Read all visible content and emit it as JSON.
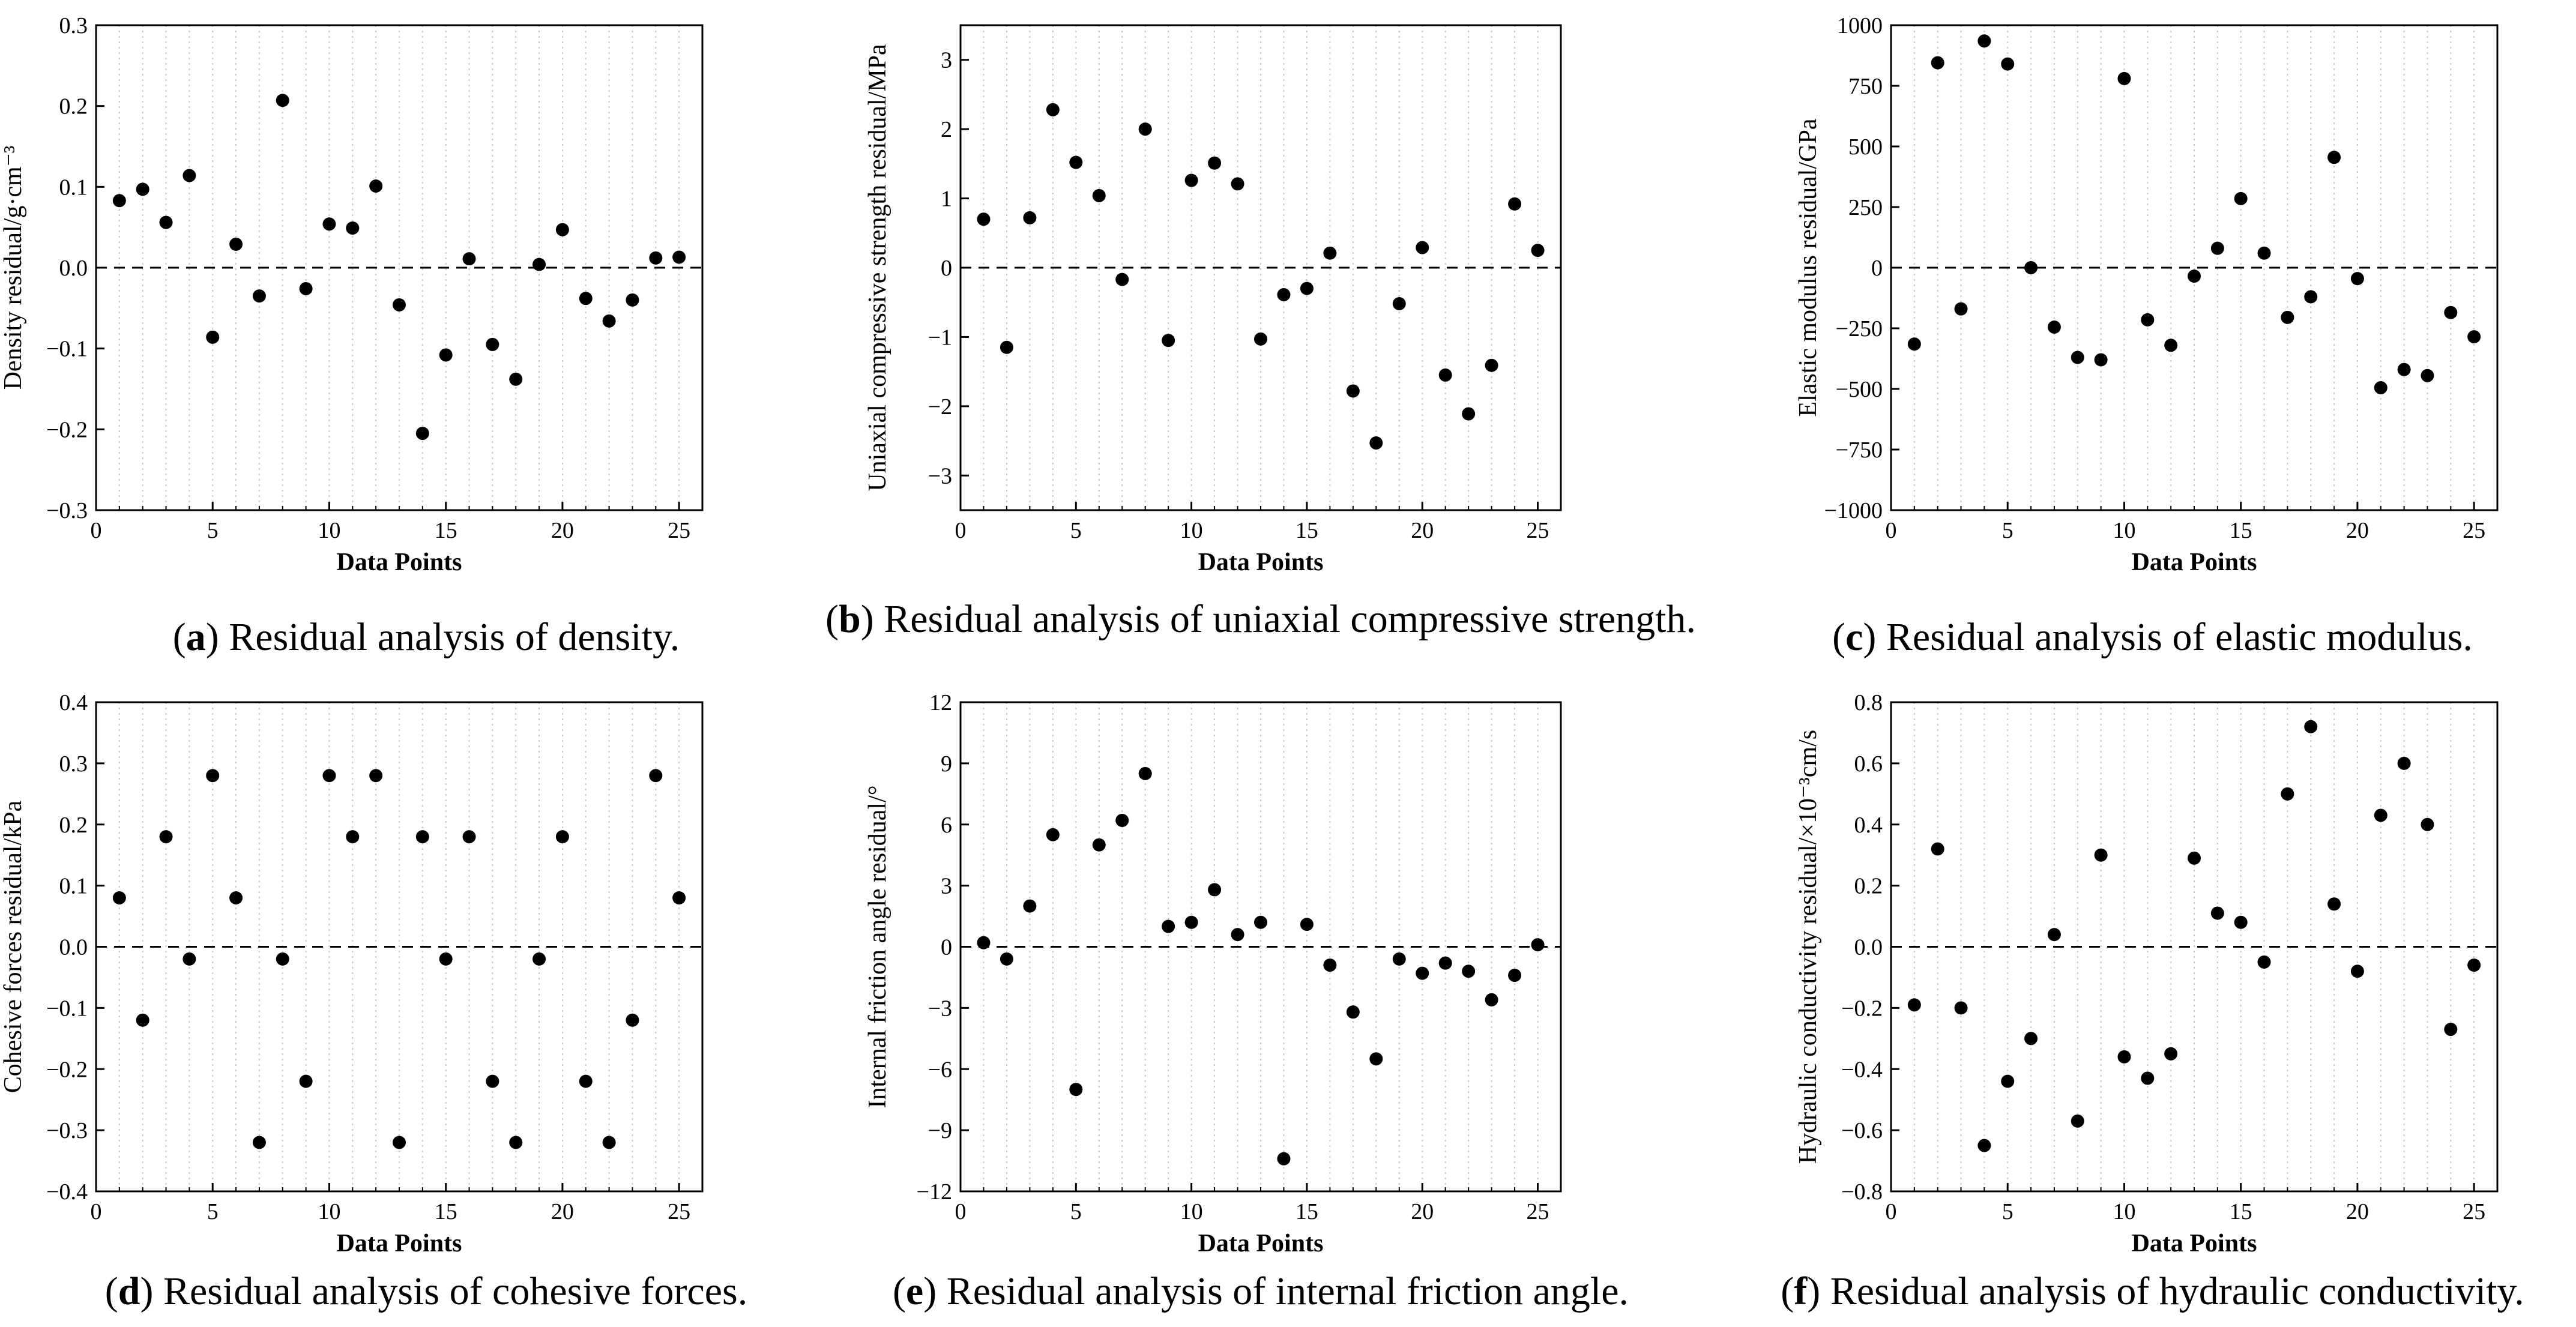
{
  "chart_data": [
    {
      "id": "a",
      "type": "scatter",
      "caption_letter": "a",
      "caption_text": "Residual analysis of density.",
      "xlabel": "Data Points",
      "ylabel": "Density residual/g·cm⁻³",
      "xlim": [
        0,
        26
      ],
      "ylim": [
        -0.3,
        0.3
      ],
      "xticks": [
        "0",
        "5",
        "10",
        "15",
        "20",
        "25"
      ],
      "yticks": [
        "−0.3",
        "−0.2",
        "−0.1",
        "0.0",
        "0.1",
        "0.2",
        "0.3"
      ],
      "x": [
        1,
        2,
        3,
        4,
        5,
        6,
        7,
        8,
        9,
        10,
        11,
        12,
        13,
        14,
        15,
        16,
        17,
        18,
        19,
        20,
        21,
        22,
        23,
        24,
        25
      ],
      "y": [
        0.083,
        0.097,
        0.056,
        0.114,
        -0.086,
        0.029,
        -0.035,
        0.207,
        -0.026,
        0.054,
        0.049,
        0.101,
        -0.046,
        -0.205,
        -0.108,
        0.011,
        -0.095,
        -0.138,
        0.004,
        0.047,
        -0.038,
        -0.066,
        -0.04,
        0.012,
        0.013
      ],
      "reference_line": 0
    },
    {
      "id": "b",
      "type": "scatter",
      "caption_letter": "b",
      "caption_text": "Residual analysis of uniaxial compressive strength.",
      "xlabel": "Data Points",
      "ylabel": "Uniaxial compressive strength residual/MPa",
      "xlim": [
        0,
        26
      ],
      "ylim": [
        -3.5,
        3.5
      ],
      "xticks": [
        "0",
        "5",
        "10",
        "15",
        "20",
        "25"
      ],
      "yticks": [
        "−3",
        "−2",
        "−1",
        "0",
        "1",
        "2",
        "3"
      ],
      "x": [
        1,
        2,
        3,
        4,
        5,
        6,
        7,
        8,
        9,
        10,
        11,
        12,
        13,
        14,
        15,
        16,
        17,
        18,
        19,
        20,
        21,
        22,
        23,
        24,
        25
      ],
      "y": [
        0.7,
        -1.15,
        0.72,
        2.28,
        1.52,
        1.04,
        -0.17,
        2.0,
        -1.05,
        1.26,
        1.51,
        1.21,
        -1.03,
        -0.39,
        -0.3,
        0.21,
        -1.78,
        -2.53,
        -0.52,
        0.29,
        -1.55,
        -2.11,
        -1.41,
        0.92,
        0.25
      ],
      "reference_line": 0
    },
    {
      "id": "c",
      "type": "scatter",
      "caption_letter": "c",
      "caption_text": "Residual analysis of elastic modulus.",
      "xlabel": "Data Points",
      "ylabel": "Elastic modulus residual/GPa",
      "xlim": [
        0,
        26
      ],
      "ylim": [
        -1000,
        1000
      ],
      "xticks": [
        "0",
        "5",
        "10",
        "15",
        "20",
        "25"
      ],
      "yticks": [
        "−1000",
        "−750",
        "−500",
        "−250",
        "0",
        "250",
        "500",
        "750",
        "1000"
      ],
      "x": [
        1,
        2,
        3,
        4,
        5,
        6,
        7,
        8,
        9,
        10,
        11,
        12,
        13,
        14,
        15,
        16,
        17,
        18,
        19,
        20,
        21,
        22,
        23,
        24,
        25
      ],
      "y": [
        -315,
        845,
        -170,
        935,
        840,
        0,
        -245,
        -370,
        -380,
        780,
        -215,
        -320,
        -35,
        80,
        285,
        60,
        -205,
        -120,
        455,
        -45,
        -495,
        -420,
        -445,
        -185,
        -285
      ],
      "reference_line": 0
    },
    {
      "id": "d",
      "type": "scatter",
      "caption_letter": "d",
      "caption_text": "Residual analysis of cohesive forces.",
      "xlabel": "Data Points",
      "ylabel": "Cohesive forces residual/kPa",
      "xlim": [
        0,
        26
      ],
      "ylim": [
        -0.4,
        0.4
      ],
      "xticks": [
        "0",
        "5",
        "10",
        "15",
        "20",
        "25"
      ],
      "yticks": [
        "−0.4",
        "−0.3",
        "−0.2",
        "−0.1",
        "0.0",
        "0.1",
        "0.2",
        "0.3",
        "0.4"
      ],
      "x": [
        1,
        2,
        3,
        4,
        5,
        6,
        7,
        8,
        9,
        10,
        11,
        12,
        13,
        14,
        15,
        16,
        17,
        18,
        19,
        20,
        21,
        22,
        23,
        24,
        25
      ],
      "y": [
        0.08,
        -0.12,
        0.18,
        -0.02,
        0.28,
        0.08,
        -0.32,
        -0.02,
        -0.22,
        0.28,
        0.18,
        0.28,
        -0.32,
        0.18,
        -0.02,
        0.18,
        -0.22,
        -0.32,
        -0.02,
        0.18,
        -0.22,
        -0.32,
        -0.12,
        0.28,
        0.08
      ],
      "reference_line": 0
    },
    {
      "id": "e",
      "type": "scatter",
      "caption_letter": "e",
      "caption_text": "Residual analysis of internal friction angle.",
      "xlabel": "Data Points",
      "ylabel": "Internal friction angle residual/°",
      "xlim": [
        0,
        26
      ],
      "ylim": [
        -12,
        12
      ],
      "xticks": [
        "0",
        "5",
        "10",
        "15",
        "20",
        "25"
      ],
      "yticks": [
        "−12",
        "−9",
        "−6",
        "−3",
        "0",
        "3",
        "6",
        "9",
        "12"
      ],
      "x": [
        1,
        2,
        3,
        4,
        5,
        6,
        7,
        8,
        9,
        10,
        11,
        12,
        13,
        14,
        15,
        16,
        17,
        18,
        19,
        20,
        21,
        22,
        23,
        24,
        25
      ],
      "y": [
        0.2,
        -0.6,
        2.0,
        5.5,
        -7.0,
        5.0,
        6.2,
        8.5,
        1.0,
        1.2,
        2.8,
        0.6,
        1.2,
        -10.4,
        1.1,
        -0.9,
        -3.2,
        -5.5,
        -0.6,
        -1.3,
        -0.8,
        -1.2,
        -2.6,
        -1.4,
        0.1
      ],
      "reference_line": 0
    },
    {
      "id": "f",
      "type": "scatter",
      "caption_letter": "f",
      "caption_text": "Residual analysis of hydraulic conductivity.",
      "xlabel": "Data Points",
      "ylabel": "Hydraulic conductivity residual/×10⁻³cm/s",
      "xlim": [
        0,
        26
      ],
      "ylim": [
        -0.8,
        0.8
      ],
      "xticks": [
        "0",
        "5",
        "10",
        "15",
        "20",
        "25"
      ],
      "yticks": [
        "−0.8",
        "−0.6",
        "−0.4",
        "−0.2",
        "0.0",
        "0.2",
        "0.4",
        "0.6",
        "0.8"
      ],
      "x": [
        1,
        2,
        3,
        4,
        5,
        6,
        7,
        8,
        9,
        10,
        11,
        12,
        13,
        14,
        15,
        16,
        17,
        18,
        19,
        20,
        21,
        22,
        23,
        24,
        25
      ],
      "y": [
        -0.19,
        0.32,
        -0.2,
        -0.65,
        -0.44,
        -0.3,
        0.04,
        -0.57,
        0.3,
        -0.36,
        -0.43,
        -0.35,
        0.29,
        0.11,
        0.08,
        -0.05,
        0.5,
        0.72,
        0.14,
        -0.08,
        0.43,
        0.6,
        0.4,
        -0.27,
        -0.06
      ],
      "reference_line": 0
    }
  ],
  "style": {
    "point_color": "#000000",
    "gridline_color": "#c8c8c8",
    "reference_line_color": "#000000"
  }
}
